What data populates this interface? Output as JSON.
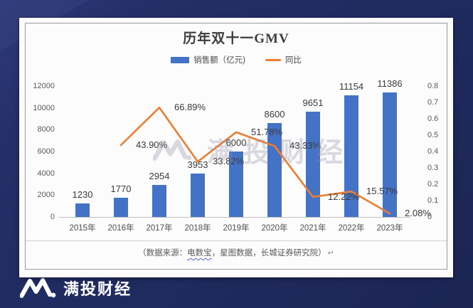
{
  "title": "历年双十一GMV",
  "legend": {
    "bar_label": "销售额（亿元)",
    "line_label": "同比"
  },
  "chart_data": {
    "type": "combo-bar-line",
    "title": "历年双十一GMV",
    "categories": [
      "2015年",
      "2016年",
      "2017年",
      "2018年",
      "2019年",
      "2020年",
      "2021年",
      "2022年",
      "2023年"
    ],
    "series": [
      {
        "name": "销售额（亿元)",
        "chart": "bar",
        "axis": "left",
        "color": "#4472C4",
        "values": [
          1230,
          1770,
          2954,
          3953,
          6000,
          8600,
          9651,
          11154,
          11386
        ],
        "labels": [
          "1230",
          "1770",
          "2954",
          "3953",
          "6000",
          "8600",
          "9651",
          "11154",
          "11386"
        ]
      },
      {
        "name": "同比",
        "chart": "line",
        "axis": "right",
        "color": "#ED7D31",
        "values": [
          null,
          0.439,
          0.6689,
          0.3382,
          0.5178,
          0.4333,
          0.1222,
          0.1557,
          0.0208
        ],
        "labels": [
          null,
          "43.90%",
          "66.89%",
          "33.82%",
          "51.78%",
          "43.33%",
          "12.22%",
          "15.57%",
          "2.08%"
        ]
      }
    ],
    "left_axis": {
      "min": 0,
      "max": 12000,
      "ticks": [
        "12000",
        "10000",
        "8000",
        "6000",
        "4000",
        "2000",
        "0"
      ]
    },
    "right_axis": {
      "min": 0,
      "max": 0.8,
      "ticks": [
        "0.8",
        "0.7",
        "0.6",
        "0.5",
        "0.4",
        "0.3",
        "0.2",
        "0.1",
        "0"
      ]
    },
    "grid": false,
    "legend_position": "top"
  },
  "source_note": {
    "prefix": "（数据来源：",
    "highlight": "电数宝",
    "suffix": "，星图数据，长城证券研究院）",
    "mark": "↵"
  },
  "watermark": {
    "text": "满投财经"
  },
  "footer": {
    "brand": "满投财经"
  },
  "colors": {
    "background": "#1F2A5E",
    "card": "#FCFCFC",
    "bar": "#4472C4",
    "line": "#ED7D31",
    "watermark": "#8F86A0",
    "axis_text": "#595959"
  }
}
